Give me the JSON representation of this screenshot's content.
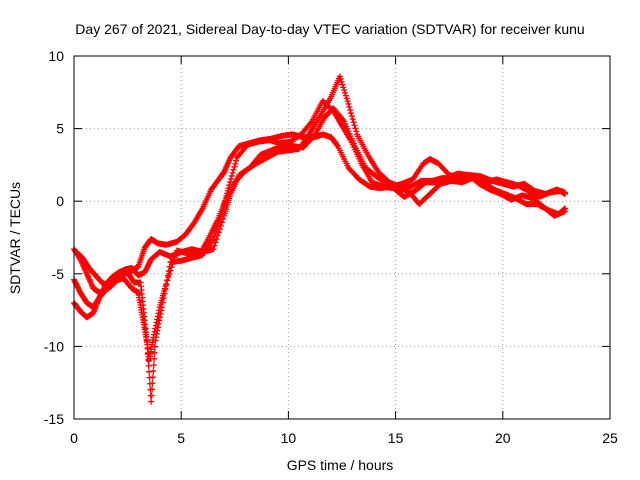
{
  "chart_data": {
    "type": "scatter",
    "title": "Day 267 of 2021, Sidereal Day-to-day VTEC variation (SDTVAR) for receiver kunu",
    "xlabel": "GPS time / hours",
    "ylabel": "SDTVAR / TECUs",
    "xlim": [
      0,
      25
    ],
    "ylim": [
      -15,
      10
    ],
    "xticks": [
      0,
      5,
      10,
      15,
      20,
      25
    ],
    "yticks": [
      -15,
      -10,
      -5,
      0,
      5,
      10
    ],
    "xtick_labels": [
      "0",
      "5",
      "10",
      "15",
      "20",
      "25"
    ],
    "ytick_labels": [
      "-15",
      "-10",
      "-5",
      "0",
      "5",
      "10"
    ],
    "grid": true,
    "marker": "+",
    "color": "#ff0000",
    "series": [
      {
        "name": "track-1",
        "x": [
          0.0,
          0.3,
          0.6,
          0.9,
          1.2,
          1.6,
          2.0,
          2.4,
          2.8,
          3.0,
          3.3,
          3.6,
          3.9,
          4.3,
          4.8,
          5.2,
          5.6,
          6.0,
          6.4,
          6.8,
          7.0,
          7.3,
          7.7,
          8.2,
          8.7,
          9.2,
          9.7,
          10.2,
          10.7,
          11.2,
          11.6,
          12.0,
          12.3,
          12.8,
          13.3,
          13.8,
          14.3,
          14.8,
          15.3,
          15.8,
          16.3,
          16.6,
          17.0,
          17.5,
          18.0,
          18.5,
          19.0,
          19.5,
          20.0,
          20.5,
          21.0,
          21.5,
          22.0,
          22.5,
          22.9
        ],
        "y": [
          -3.3,
          -4.0,
          -5.0,
          -6.0,
          -6.3,
          -6.0,
          -5.2,
          -5.0,
          -4.7,
          -4.5,
          -3.2,
          -2.6,
          -2.9,
          -3.0,
          -2.8,
          -2.3,
          -1.5,
          -0.5,
          0.8,
          1.6,
          2.0,
          3.0,
          3.8,
          4.0,
          4.2,
          4.3,
          4.5,
          4.6,
          4.4,
          4.4,
          4.6,
          4.4,
          3.8,
          2.3,
          1.5,
          1.0,
          0.9,
          1.0,
          1.2,
          1.5,
          2.6,
          2.9,
          2.6,
          1.8,
          1.6,
          1.8,
          1.7,
          1.4,
          1.2,
          1.0,
          1.2,
          0.7,
          0.5,
          0.8,
          0.6
        ]
      },
      {
        "name": "track-2",
        "x": [
          0.1,
          0.4,
          0.7,
          1.0,
          1.3,
          1.7,
          2.1,
          2.5,
          2.8,
          3.1,
          3.3,
          3.5,
          3.7,
          4.0,
          4.3,
          4.8,
          5.3,
          5.8,
          6.3,
          6.7,
          7.1,
          7.5,
          8.0,
          8.5,
          9.0,
          9.5,
          10.0,
          10.5,
          11.0,
          11.5,
          12.0,
          12.4,
          12.8,
          13.2,
          13.7,
          14.2,
          14.7,
          15.2,
          15.7,
          16.2,
          16.7,
          17.2,
          17.7,
          18.2,
          18.7,
          19.2,
          19.7,
          20.2,
          20.7,
          21.2,
          21.7,
          22.2,
          22.7,
          22.9
        ],
        "y": [
          -3.5,
          -3.9,
          -4.6,
          -5.1,
          -5.6,
          -5.9,
          -5.3,
          -4.9,
          -5.6,
          -5.6,
          -8.2,
          -11.0,
          -9.4,
          -7.3,
          -5.7,
          -3.4,
          -3.6,
          -3.8,
          -2.5,
          -1.3,
          0.2,
          1.3,
          2.1,
          2.6,
          3.0,
          3.4,
          3.5,
          3.6,
          4.7,
          5.9,
          7.2,
          8.6,
          6.7,
          4.6,
          3.2,
          2.0,
          1.3,
          1.0,
          1.0,
          1.4,
          1.4,
          1.6,
          1.5,
          1.6,
          1.7,
          1.3,
          1.5,
          1.3,
          1.1,
          0.7,
          0.3,
          0.6,
          0.7,
          0.5
        ]
      },
      {
        "name": "track-3",
        "x": [
          0.0,
          0.3,
          0.6,
          0.9,
          1.2,
          1.5,
          1.9,
          2.3,
          2.7,
          3.0,
          3.2,
          3.4,
          3.6,
          3.8,
          4.1,
          4.5,
          5.0,
          5.5,
          6.0,
          6.5,
          6.9,
          7.2,
          7.6,
          8.1,
          8.6,
          9.1,
          9.6,
          10.1,
          10.6,
          11.1,
          11.6,
          12.1,
          12.5,
          12.9,
          13.4,
          13.9,
          14.4,
          14.9,
          15.4,
          15.9,
          16.4,
          16.9,
          17.4,
          17.9,
          18.4,
          18.9,
          19.4,
          19.9,
          20.4,
          20.9,
          21.4,
          21.9,
          22.4,
          22.9
        ],
        "y": [
          -5.4,
          -6.3,
          -7.0,
          -7.3,
          -6.6,
          -6.1,
          -5.5,
          -5.3,
          -6.0,
          -6.3,
          -8.0,
          -9.7,
          -13.8,
          -9.6,
          -7.3,
          -4.2,
          -4.1,
          -3.9,
          -3.7,
          -2.6,
          -0.9,
          0.9,
          3.0,
          3.9,
          4.1,
          4.2,
          4.0,
          4.1,
          4.6,
          5.5,
          6.9,
          6.2,
          5.2,
          4.2,
          2.6,
          1.3,
          1.0,
          0.9,
          0.3,
          0.7,
          1.3,
          1.3,
          1.6,
          1.9,
          1.8,
          1.2,
          0.8,
          0.5,
          0.1,
          0.4,
          0.2,
          -0.4,
          -1.0,
          -0.7
        ]
      },
      {
        "name": "track-4",
        "x": [
          0.0,
          0.3,
          0.6,
          0.9,
          1.2,
          1.5,
          1.8,
          2.1,
          2.4,
          2.7,
          3.0,
          3.3,
          3.6,
          4.0,
          4.5,
          5.0,
          5.5,
          6.0,
          6.5,
          7.0,
          7.3,
          7.7,
          8.2,
          8.7,
          9.2,
          9.7,
          10.2,
          10.7,
          11.2,
          11.7,
          12.1,
          12.6,
          13.1,
          13.6,
          14.1,
          14.6,
          15.1,
          15.6,
          16.1,
          16.6,
          17.1,
          17.6,
          18.1,
          18.6,
          19.1,
          19.6,
          20.1,
          20.6,
          21.1,
          21.6,
          22.1,
          22.6,
          22.9
        ],
        "y": [
          -7.0,
          -7.6,
          -8.0,
          -7.7,
          -6.6,
          -5.7,
          -5.2,
          -4.9,
          -4.7,
          -4.6,
          -5.1,
          -4.9,
          -4.0,
          -3.5,
          -3.8,
          -3.5,
          -3.3,
          -3.5,
          -3.3,
          -1.0,
          0.5,
          1.8,
          2.3,
          3.2,
          3.5,
          3.8,
          3.8,
          3.7,
          4.5,
          5.8,
          6.4,
          5.5,
          3.8,
          2.3,
          1.7,
          1.2,
          0.9,
          0.7,
          -0.2,
          0.5,
          1.2,
          1.4,
          1.3,
          1.6,
          1.3,
          0.8,
          0.5,
          0.2,
          -0.2,
          -0.2,
          -0.6,
          -0.9,
          -0.5
        ]
      }
    ]
  }
}
